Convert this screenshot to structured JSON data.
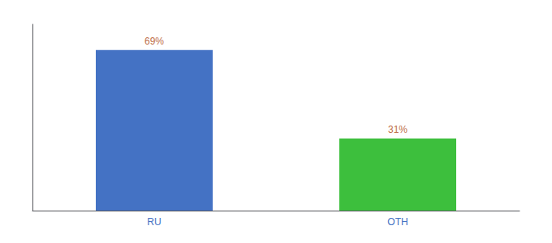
{
  "chart_data": {
    "type": "bar",
    "categories": [
      "RU",
      "OTH"
    ],
    "values": [
      69,
      31
    ],
    "value_labels": [
      "69%",
      "31%"
    ],
    "data_labels": true,
    "colors": [
      "#4472c4",
      "#3dbf3d"
    ],
    "ylim": [
      0,
      80
    ],
    "grid": false,
    "tick_labels": "x"
  }
}
